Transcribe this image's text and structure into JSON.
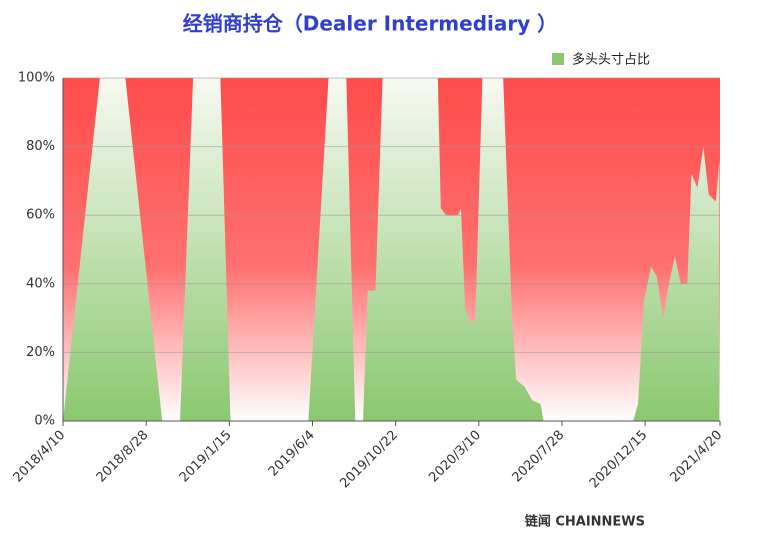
{
  "chart_data": {
    "type": "area",
    "title": "经销商持仓（Dealer Intermediary ）",
    "footer": "链闻 CHAINNEWS",
    "x": [
      "2018/4/10",
      "2018/6/11",
      "2018/7/24",
      "2018/9/24",
      "2018/10/24",
      "2018/11/15",
      "2018/12/31",
      "2019/1/17",
      "2019/5/28",
      "2019/7/1",
      "2019/7/31",
      "2019/8/15",
      "2019/8/28",
      "2019/9/5",
      "2019/9/18",
      "2019/9/30",
      "2020/1/1",
      "2020/1/6",
      "2020/1/15",
      "2020/2/4",
      "2020/2/9",
      "2020/2/16",
      "2020/2/24",
      "2020/3/4",
      "2020/3/16",
      "2020/4/20",
      "2020/5/5",
      "2020/5/12",
      "2020/5/26",
      "2020/6/8",
      "2020/6/22",
      "2020/6/27",
      "2020/11/25",
      "2020/12/3",
      "2020/12/13",
      "2020/12/25",
      "2021/1/4",
      "2021/1/14",
      "2021/1/24",
      "2021/2/3",
      "2021/2/13",
      "2021/2/24",
      "2021/3/3",
      "2021/3/13",
      "2021/3/23",
      "2021/4/1",
      "2021/4/13",
      "2021/4/19"
    ],
    "series": [
      {
        "name": "多头头寸占比",
        "color": "#8bc870",
        "values": [
          0,
          100,
          100,
          0,
          0,
          100,
          100,
          0,
          0,
          100,
          100,
          0,
          0,
          38,
          38,
          100,
          100,
          62,
          60,
          60,
          62,
          33,
          29,
          29,
          100,
          100,
          30,
          12,
          10,
          6,
          5,
          0,
          0,
          5,
          35,
          45,
          42,
          30,
          40,
          48,
          40,
          40,
          72,
          68,
          80,
          66,
          64,
          76
        ]
      }
    ],
    "background_color": "#ff4b4b",
    "xlim": [
      "2018/4/10",
      "2021/4/20"
    ],
    "xticks": [
      "2018/4/10",
      "2018/8/28",
      "2019/1/15",
      "2019/6/4",
      "2019/10/22",
      "2020/3/10",
      "2020/7/28",
      "2020/12/15",
      "2021/4/20"
    ],
    "ylim": [
      0,
      100
    ],
    "yticks": [
      {
        "value": 0,
        "label": "0%"
      },
      {
        "value": 20,
        "label": "20%"
      },
      {
        "value": 40,
        "label": "40%"
      },
      {
        "value": 60,
        "label": "60%"
      },
      {
        "value": 80,
        "label": "80%"
      },
      {
        "value": 100,
        "label": "100%"
      }
    ],
    "grid": true,
    "legend": "top-right"
  }
}
